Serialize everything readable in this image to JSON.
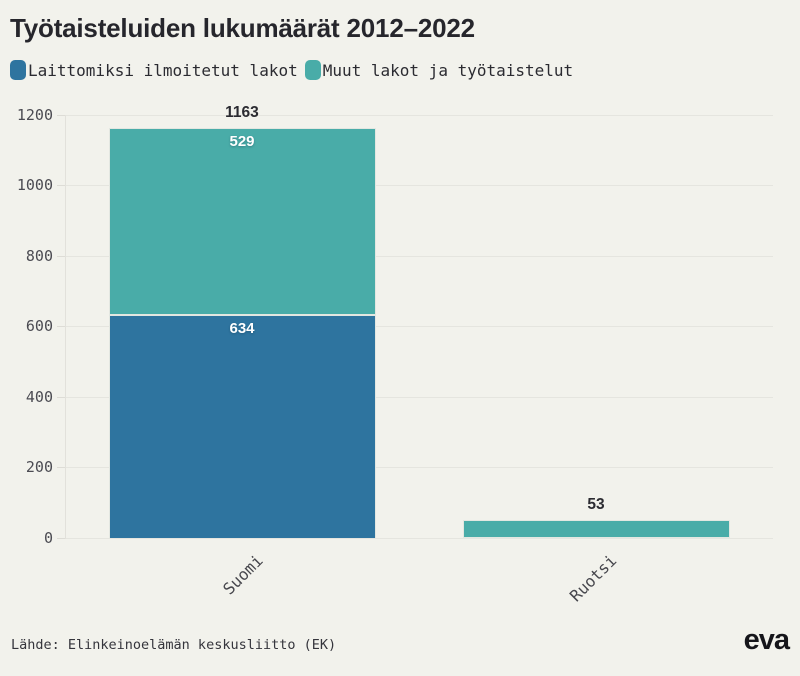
{
  "title": "Työtaisteluiden lukumäärät 2012–2022",
  "legend": {
    "items": [
      {
        "label": "Laittomiksi ilmoitetut lakot",
        "color": "#2e749f"
      },
      {
        "label": "Muut lakot ja työtaistelut",
        "color": "#49aca8"
      }
    ]
  },
  "footer": {
    "source": "Lähde: Elinkeinoelämän keskusliitto (EK)",
    "logo": "eva"
  },
  "colors": {
    "background": "#f2f2ec",
    "grid": "#e5e5df",
    "bar_stroke": "#e3e7e1",
    "total_label": "#2b2b31",
    "value_label": "#ffffff",
    "blue": "#2e749f",
    "teal": "#49aca8"
  },
  "chart_data": {
    "type": "bar",
    "stacked": true,
    "orientation": "vertical",
    "title": "Työtaisteluiden lukumäärät 2012–2022",
    "categories": [
      "Suomi",
      "Ruotsi"
    ],
    "series": [
      {
        "name": "Laittomiksi ilmoitetut lakot",
        "color": "#2e749f",
        "values": [
          634,
          2
        ]
      },
      {
        "name": "Muut lakot ja työtaistelut",
        "color": "#49aca8",
        "values": [
          529,
          51
        ]
      }
    ],
    "totals": [
      1163,
      53
    ],
    "segment_labels_shown": [
      [
        634,
        null
      ],
      [
        529,
        null
      ]
    ],
    "yticks": [
      0,
      200,
      400,
      600,
      800,
      1000,
      1200
    ],
    "ylim": [
      0,
      1200
    ],
    "grid": "horizontal",
    "legend_position": "top-left",
    "source": "Lähde: Elinkeinoelämän keskusliitto (EK)"
  }
}
